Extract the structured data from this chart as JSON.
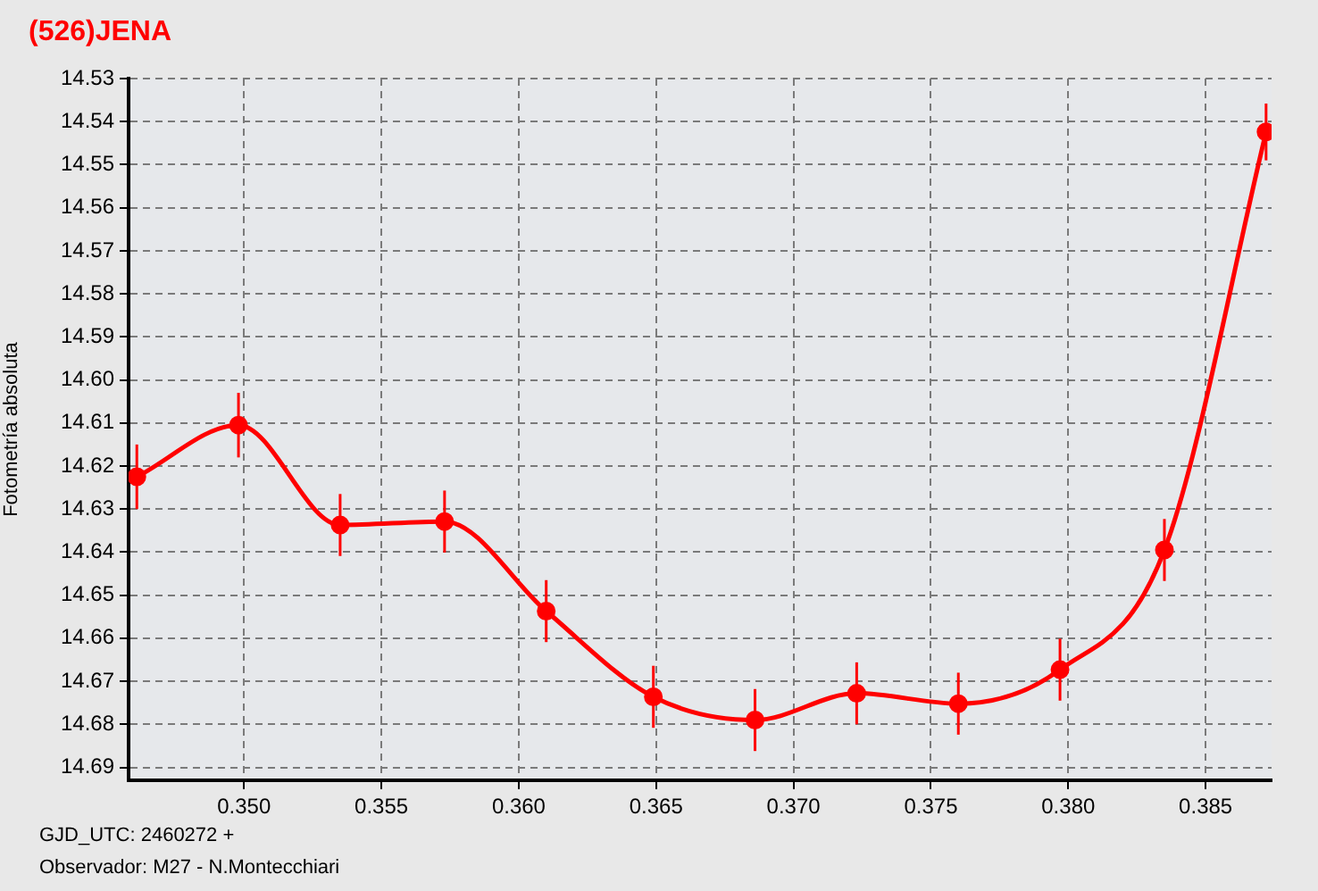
{
  "chart_data": {
    "type": "line",
    "title": "(526)JENA",
    "ylabel": "Fotometría absoluta",
    "annotations": [
      "GJD_UTC: 2460272 +",
      "Observador: M27 - N.Montecchiari"
    ],
    "xlim": [
      0.3458,
      0.3874
    ],
    "xticks": [
      {
        "value": 0.35,
        "label": "0.350"
      },
      {
        "value": 0.355,
        "label": "0.355"
      },
      {
        "value": 0.36,
        "label": "0.360"
      },
      {
        "value": 0.365,
        "label": "0.365"
      },
      {
        "value": 0.37,
        "label": "0.370"
      },
      {
        "value": 0.375,
        "label": "0.375"
      },
      {
        "value": 0.38,
        "label": "0.380"
      },
      {
        "value": 0.385,
        "label": "0.385"
      }
    ],
    "ylim": [
      14.693,
      14.53
    ],
    "yticks": [
      14.53,
      14.54,
      14.55,
      14.56,
      14.57,
      14.58,
      14.59,
      {
        "value": 14.6,
        "label": "14.60"
      },
      14.61,
      14.62,
      14.63,
      14.64,
      14.65,
      14.66,
      14.67,
      14.68,
      14.69
    ],
    "grid": true,
    "legend": false,
    "marker": "circle",
    "line_style": "solid",
    "series": [
      {
        "color": "#ff0000",
        "x": [
          0.3461,
          0.3498,
          0.3535,
          0.3573,
          0.361,
          0.3649,
          0.3686,
          0.3723,
          0.376,
          0.3797,
          0.3835,
          0.3872
        ],
        "values": [
          14.6225,
          14.6105,
          14.6337,
          14.6329,
          14.6537,
          14.6736,
          14.679,
          14.6728,
          14.6752,
          14.6673,
          14.6395,
          14.5424
        ],
        "errors": [
          0.0075,
          0.0075,
          0.0072,
          0.0072,
          0.0072,
          0.0072,
          0.0072,
          0.0072,
          0.0072,
          0.0072,
          0.0072,
          0.0066
        ]
      }
    ]
  }
}
